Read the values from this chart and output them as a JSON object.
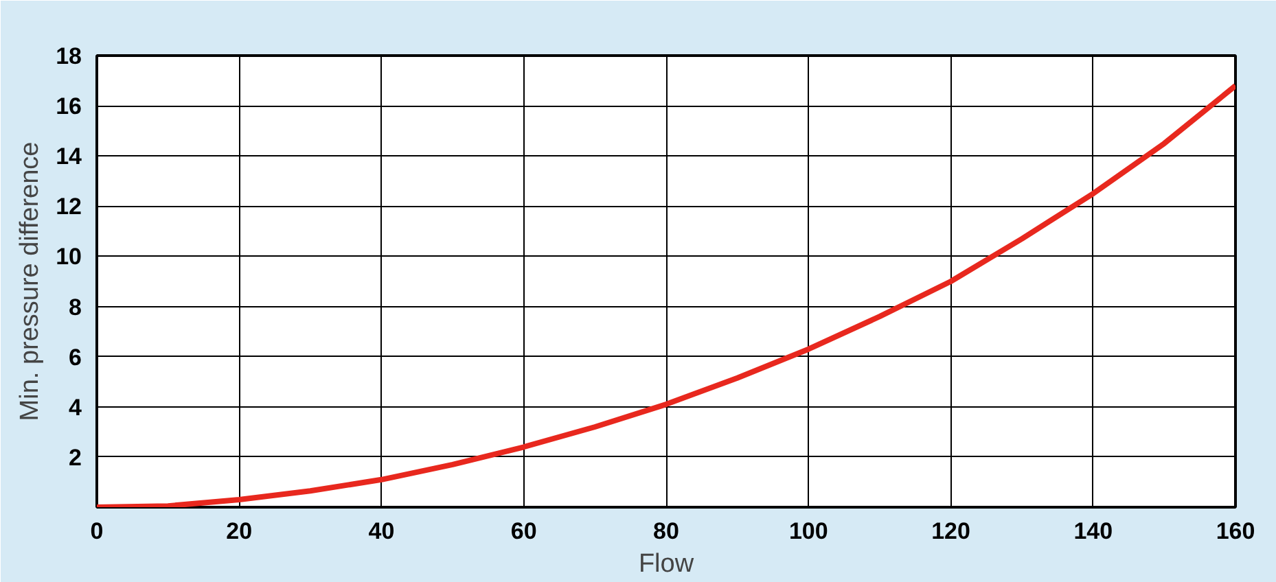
{
  "chart_data": {
    "type": "line",
    "xlabel": "Flow",
    "ylabel": "Min. pressure difference",
    "x": [
      0,
      10,
      20,
      30,
      40,
      50,
      60,
      70,
      80,
      90,
      100,
      110,
      120,
      130,
      140,
      150,
      160
    ],
    "series": [
      {
        "color": "#e8281e",
        "values": [
          0,
          0.05,
          0.3,
          0.65,
          1.1,
          1.7,
          2.4,
          3.2,
          4.1,
          5.15,
          6.3,
          7.6,
          9.0,
          10.7,
          12.5,
          14.5,
          16.8
        ]
      }
    ],
    "xlim": [
      0,
      160
    ],
    "ylim": [
      0,
      18
    ],
    "xticks": [
      0,
      20,
      40,
      60,
      80,
      100,
      120,
      140,
      160
    ],
    "yticks": [
      {
        "value": 0,
        "label": null
      },
      2,
      4,
      6,
      8,
      10,
      12,
      14,
      16,
      18
    ],
    "grid": true,
    "marker": "none",
    "line_style": "solid"
  }
}
